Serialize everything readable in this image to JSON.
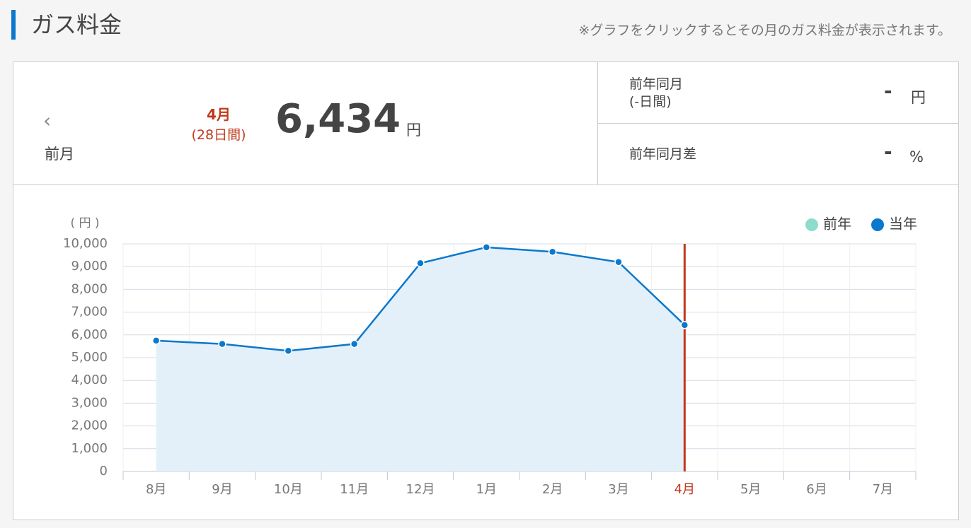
{
  "header": {
    "title": "ガス料金",
    "note": "※グラフをクリックするとその月のガス料金が表示されます。"
  },
  "summary": {
    "prev": "前月",
    "month": "4月",
    "days": "(28日間)",
    "amount": "6,434",
    "unit": "円",
    "yoy_label": "前年同月",
    "yoy_days": "(-日間)",
    "yoy_value": "-",
    "yoy_unit": "円",
    "diff_label": "前年同月差",
    "diff_value": "-",
    "diff_unit": "%"
  },
  "chart_data": {
    "type": "line",
    "ylabel": "( 円 )",
    "categories": [
      "8月",
      "9月",
      "10月",
      "11月",
      "12月",
      "1月",
      "2月",
      "3月",
      "4月",
      "5月",
      "6月",
      "7月"
    ],
    "series": [
      {
        "name": "前年",
        "color": "#8edccb",
        "values": [
          null,
          null,
          null,
          null,
          null,
          null,
          null,
          null,
          null,
          null,
          null,
          null
        ]
      },
      {
        "name": "当年",
        "color": "#0a78cc",
        "values": [
          5750,
          5600,
          5300,
          5600,
          9150,
          9850,
          9650,
          9200,
          6434,
          null,
          null,
          null
        ]
      }
    ],
    "ylim": [
      0,
      10000
    ],
    "yticks": [
      0,
      {
        "value": 1000,
        "label": "1,000"
      },
      {
        "value": 2000,
        "label": "2,000"
      },
      {
        "value": 3000,
        "label": "3,000"
      },
      {
        "value": 4000,
        "label": "4,000"
      },
      {
        "value": 5000,
        "label": "5,000"
      },
      {
        "value": 6000,
        "label": "6,000"
      },
      {
        "value": 7000,
        "label": "7,000"
      },
      {
        "value": 8000,
        "label": "8,000"
      },
      {
        "value": 9000,
        "label": "9,000"
      },
      {
        "value": 10000,
        "label": "10,000"
      }
    ],
    "grid": true,
    "area": true,
    "highlight_index": 8,
    "highlight_color": "#c0391b",
    "legend": "top-right"
  }
}
